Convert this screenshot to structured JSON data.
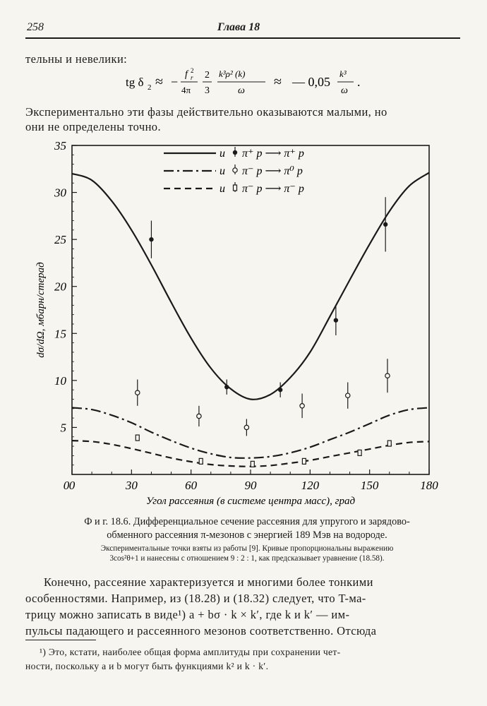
{
  "header": {
    "page_number": "258",
    "chapter": "Глава 18"
  },
  "text": {
    "para1": "тельны и невелики:",
    "formula": {
      "lhs": "tg δ",
      "lhs_sub": "2",
      "approx1": "≈",
      "minus1": "−",
      "frac1_num": "f",
      "frac1_num_sup": "2",
      "frac1_num_sub": "r",
      "frac1_den": "4π",
      "frac2_num": "2",
      "frac2_den": "3",
      "frac3_num": "k³ρ² (k)",
      "frac3_den": "ω",
      "approx2": "≈",
      "rhs_coef": "— 0,05",
      "frac4_num": "k³",
      "frac4_den": "ω",
      "end": "."
    },
    "para2_line1": "Экспериментально эти фазы действительно оказываются малыми, но",
    "para2_line2": "они не определены точно."
  },
  "chart_data": {
    "type": "line",
    "xlabel": "Угол рассеяния (в системе центра масс), град",
    "ylabel": "dσ/dΩ, мбарн/стерад",
    "xlim": [
      0,
      180
    ],
    "ylim": [
      0,
      35
    ],
    "xticks": [
      0,
      30,
      60,
      90,
      120,
      150,
      180
    ],
    "yticks": [
      5,
      10,
      15,
      20,
      25,
      30,
      35
    ],
    "grid": false,
    "legend_position": "top-center",
    "series": [
      {
        "name": "π⁺p → π⁺p",
        "line_style": "solid",
        "marker": "filled-circle",
        "curve_x": [
          0,
          10,
          20,
          30,
          40,
          50,
          60,
          70,
          80,
          90,
          100,
          110,
          120,
          130,
          140,
          150,
          160,
          170,
          180
        ],
        "curve_y": [
          32.0,
          31.3,
          29.1,
          26.0,
          22.3,
          18.3,
          14.5,
          11.3,
          9.1,
          8.0,
          8.5,
          10.3,
          13.0,
          16.8,
          20.7,
          24.5,
          28.0,
          30.7,
          32.1
        ],
        "points": [
          {
            "x": 40,
            "y": 25.0,
            "yerr": 2.0
          },
          {
            "x": 78,
            "y": 9.3,
            "yerr": 0.8
          },
          {
            "x": 105,
            "y": 9.0,
            "yerr": 0.8
          },
          {
            "x": 133,
            "y": 16.4,
            "yerr": 1.6
          },
          {
            "x": 158,
            "y": 26.6,
            "yerr": 2.9
          }
        ]
      },
      {
        "name": "π⁻p → π⁰p",
        "line_style": "dash-dot",
        "marker": "open-circle",
        "curve_x": [
          0,
          10,
          20,
          30,
          40,
          50,
          60,
          70,
          80,
          90,
          100,
          110,
          120,
          130,
          140,
          150,
          160,
          170,
          180
        ],
        "curve_y": [
          7.1,
          6.9,
          6.3,
          5.5,
          4.5,
          3.6,
          2.8,
          2.2,
          1.8,
          1.75,
          1.9,
          2.3,
          2.9,
          3.7,
          4.5,
          5.4,
          6.3,
          6.9,
          7.1
        ],
        "points": [
          {
            "x": 33,
            "y": 8.7,
            "yerr": 1.4
          },
          {
            "x": 64,
            "y": 6.2,
            "yerr": 1.1
          },
          {
            "x": 88,
            "y": 5.0,
            "yerr": 0.9
          },
          {
            "x": 116,
            "y": 7.3,
            "yerr": 1.3
          },
          {
            "x": 139,
            "y": 8.4,
            "yerr": 1.4
          },
          {
            "x": 159,
            "y": 10.5,
            "yerr": 1.8
          }
        ]
      },
      {
        "name": "π⁻p → π⁻p",
        "line_style": "dashed",
        "marker": "open-square",
        "curve_x": [
          0,
          10,
          20,
          30,
          40,
          50,
          60,
          70,
          80,
          90,
          100,
          110,
          120,
          130,
          140,
          150,
          160,
          170,
          180
        ],
        "curve_y": [
          3.6,
          3.5,
          3.2,
          2.75,
          2.25,
          1.75,
          1.35,
          1.05,
          0.9,
          0.85,
          0.95,
          1.2,
          1.5,
          1.9,
          2.3,
          2.7,
          3.1,
          3.4,
          3.5
        ],
        "points": [
          {
            "x": 33,
            "y": 3.9,
            "yerr": 0.3
          },
          {
            "x": 65,
            "y": 1.4,
            "yerr": 0.2
          },
          {
            "x": 91,
            "y": 1.1,
            "yerr": 0.2
          },
          {
            "x": 117,
            "y": 1.4,
            "yerr": 0.2
          },
          {
            "x": 145,
            "y": 2.3,
            "yerr": 0.3
          },
          {
            "x": 160,
            "y": 3.3,
            "yerr": 0.3
          }
        ]
      }
    ],
    "legend": [
      {
        "label": "u",
        "text": "π⁺ p ⟶ π⁺ p"
      },
      {
        "label": "u",
        "text": "π⁻ p ⟶ π⁰ p"
      },
      {
        "label": "u",
        "text": "π⁻ p ⟶ π⁻ p"
      }
    ]
  },
  "figure": {
    "caption_line1": "Ф и г.  18.6.  Дифференциальное сечение рассеяния для упругого и зарядово-",
    "caption_line2": "обменного рассеяния π-мезонов с энергией 189 Мэв на водороде.",
    "note_line1": "Экспериментальные точки взяты из работы [9]. Кривые пропорциональны выражению",
    "note_line2": "3cos²θ+1 и нанесены с отношением 9 : 2 : 1, как предсказывает уравнение (18.58)."
  },
  "body": {
    "line1": "Конечно, рассеяние характеризуется и многими более тонкими",
    "line2": "особенностями. Например, из (18.28) и (18.32) следует, что T-ма-",
    "line3": "трицу можно записать в виде¹) a + bσ · k × k′, где k и k′ — им-",
    "line4": "пульсы падающего и рассеянного мезонов соответственно. Отсюда"
  },
  "footnote": {
    "line1": "¹) Это, кстати, наиболее общая форма амплитуды при сохранении чет-",
    "line2": "ности, поскольку a и b могут быть функциями k² и k · k′."
  }
}
